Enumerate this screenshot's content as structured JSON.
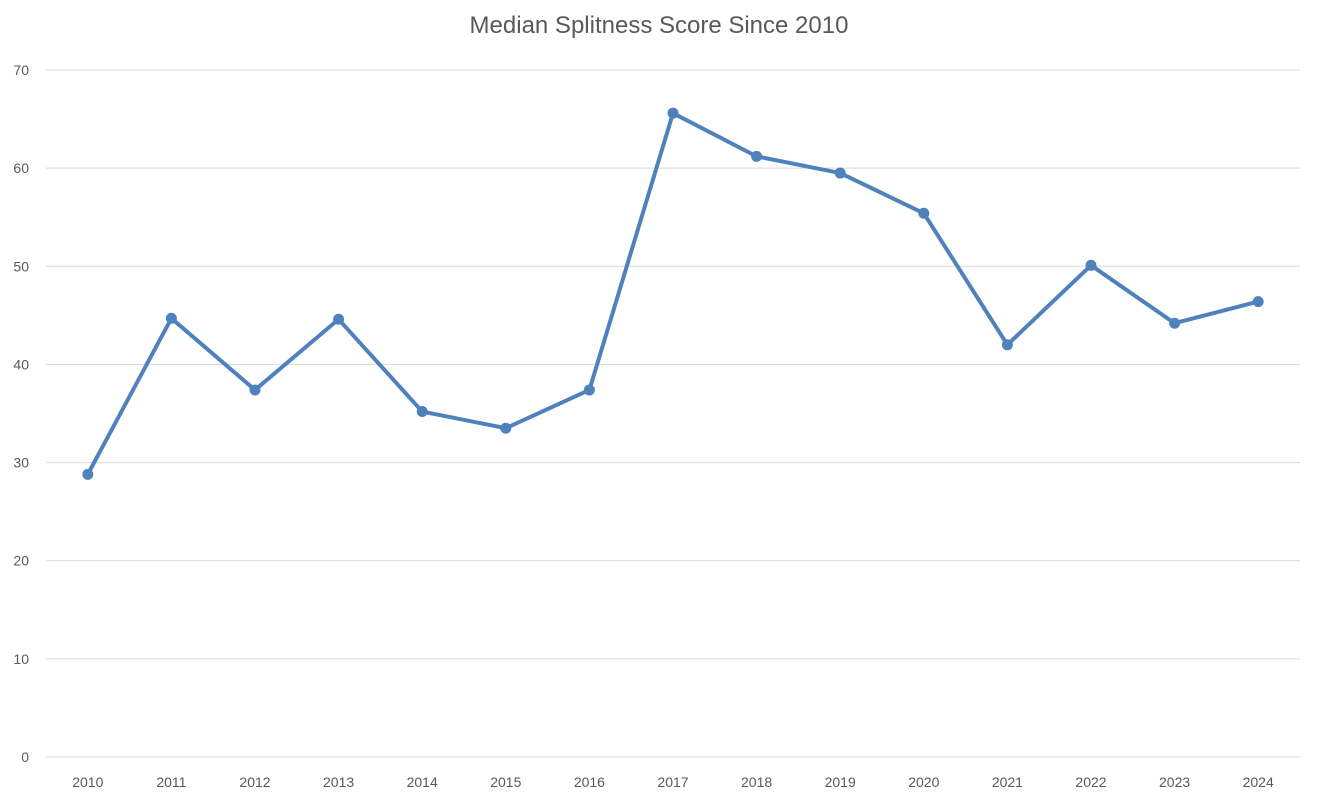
{
  "chart_data": {
    "type": "line",
    "title": "Median Splitness Score Since 2010",
    "xlabel": "",
    "ylabel": "",
    "categories": [
      "2010",
      "2011",
      "2012",
      "2013",
      "2014",
      "2015",
      "2016",
      "2017",
      "2018",
      "2019",
      "2020",
      "2021",
      "2022",
      "2023",
      "2024"
    ],
    "series": [
      {
        "values": [
          28.8,
          44.7,
          37.4,
          44.6,
          35.2,
          33.5,
          37.4,
          65.6,
          61.2,
          59.5,
          55.4,
          42.0,
          50.1,
          44.2,
          46.4
        ],
        "color": "#4f81bd"
      }
    ],
    "ylim": [
      0,
      70
    ],
    "yticks": [
      0,
      10,
      20,
      30,
      40,
      50,
      60,
      70
    ],
    "grid": true,
    "legend": "none",
    "colors": {
      "gridline": "#d9d9d9",
      "text": "#595959",
      "series": "#4f81bd"
    }
  }
}
